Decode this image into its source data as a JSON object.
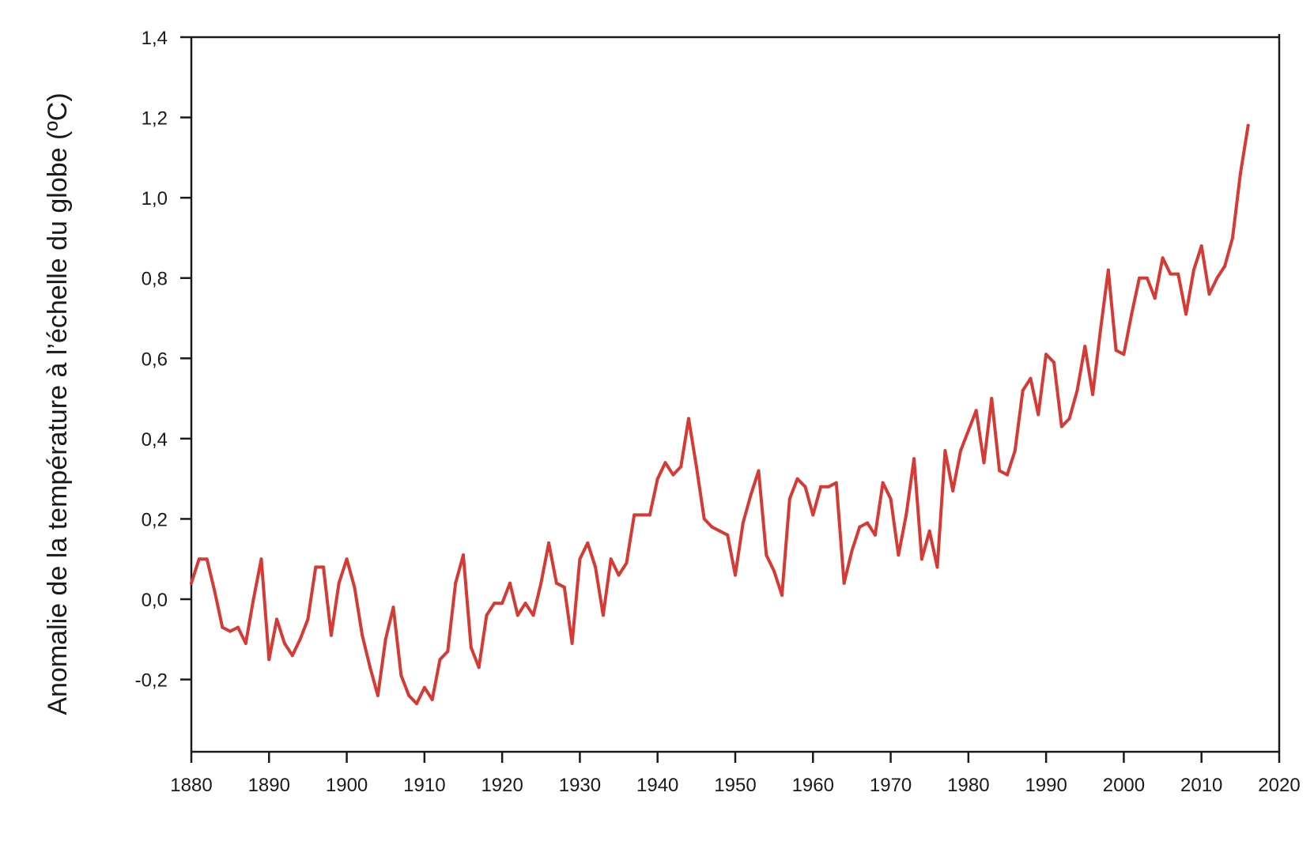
{
  "chart_data": {
    "type": "line",
    "title": "",
    "xlabel": "",
    "ylabel": "Anomalie de la température à l’échelle du globe (ºC)",
    "xlim": [
      1880,
      2020
    ],
    "ylim": [
      -0.38,
      1.4
    ],
    "x_ticks": [
      1880,
      1890,
      1900,
      1910,
      1920,
      1930,
      1940,
      1950,
      1960,
      1970,
      1980,
      1990,
      2000,
      2010,
      2020
    ],
    "x_tick_labels": [
      "1880",
      "1890",
      "1900",
      "1910",
      "1920",
      "1930",
      "1940",
      "1950",
      "1960",
      "1970",
      "1980",
      "1990",
      "2000",
      "2010",
      "2020"
    ],
    "y_ticks": [
      -0.2,
      0.0,
      0.2,
      0.4,
      0.6,
      0.8,
      1.0,
      1.2,
      1.4
    ],
    "y_tick_labels": [
      "-0,2",
      "0,0",
      "0,2",
      "0,4",
      "0,6",
      "0,8",
      "1,0",
      "1,2",
      "1,4"
    ],
    "grid": false,
    "legend": "none",
    "color": "#d63a35",
    "series": [
      {
        "x": [
          1880,
          1881,
          1882,
          1883,
          1884,
          1885,
          1886,
          1887,
          1888,
          1889,
          1890,
          1891,
          1892,
          1893,
          1894,
          1895,
          1896,
          1897,
          1898,
          1899,
          1900,
          1901,
          1902,
          1903,
          1904,
          1905,
          1906,
          1907,
          1908,
          1909,
          1910,
          1911,
          1912,
          1913,
          1914,
          1915,
          1916,
          1917,
          1918,
          1919,
          1920,
          1921,
          1922,
          1923,
          1924,
          1925,
          1926,
          1927,
          1928,
          1929,
          1930,
          1931,
          1932,
          1933,
          1934,
          1935,
          1936,
          1937,
          1938,
          1939,
          1940,
          1941,
          1942,
          1943,
          1944,
          1945,
          1946,
          1947,
          1948,
          1949,
          1950,
          1951,
          1952,
          1953,
          1954,
          1955,
          1956,
          1957,
          1958,
          1959,
          1960,
          1961,
          1962,
          1963,
          1964,
          1965,
          1966,
          1967,
          1968,
          1969,
          1970,
          1971,
          1972,
          1973,
          1974,
          1975,
          1976,
          1977,
          1978,
          1979,
          1980,
          1981,
          1982,
          1983,
          1984,
          1985,
          1986,
          1987,
          1988,
          1989,
          1990,
          1991,
          1992,
          1993,
          1994,
          1995,
          1996,
          1997,
          1998,
          1999,
          2000,
          2001,
          2002,
          2003,
          2004,
          2005,
          2006,
          2007,
          2008,
          2009,
          2010,
          2011,
          2012,
          2013,
          2014,
          2015,
          2016
        ],
        "values": [
          0.04,
          0.1,
          0.1,
          0.02,
          -0.07,
          -0.08,
          -0.07,
          -0.11,
          0.0,
          0.1,
          -0.15,
          -0.05,
          -0.11,
          -0.14,
          -0.1,
          -0.05,
          0.08,
          0.08,
          -0.09,
          0.04,
          0.1,
          0.03,
          -0.09,
          -0.17,
          -0.24,
          -0.1,
          -0.02,
          -0.19,
          -0.24,
          -0.26,
          -0.22,
          -0.25,
          -0.15,
          -0.13,
          0.04,
          0.11,
          -0.12,
          -0.17,
          -0.04,
          -0.01,
          -0.01,
          0.04,
          -0.04,
          -0.01,
          -0.04,
          0.04,
          0.14,
          0.04,
          0.03,
          -0.11,
          0.1,
          0.14,
          0.08,
          -0.04,
          0.1,
          0.06,
          0.09,
          0.21,
          0.21,
          0.21,
          0.3,
          0.34,
          0.31,
          0.33,
          0.45,
          0.33,
          0.2,
          0.18,
          0.17,
          0.16,
          0.06,
          0.19,
          0.26,
          0.32,
          0.11,
          0.07,
          0.01,
          0.25,
          0.3,
          0.28,
          0.21,
          0.28,
          0.28,
          0.29,
          0.04,
          0.12,
          0.18,
          0.19,
          0.16,
          0.29,
          0.25,
          0.11,
          0.21,
          0.35,
          0.1,
          0.17,
          0.08,
          0.37,
          0.27,
          0.37,
          0.42,
          0.47,
          0.34,
          0.5,
          0.32,
          0.31,
          0.37,
          0.52,
          0.55,
          0.46,
          0.61,
          0.59,
          0.43,
          0.45,
          0.52,
          0.63,
          0.51,
          0.67,
          0.82,
          0.62,
          0.61,
          0.71,
          0.8,
          0.8,
          0.75,
          0.85,
          0.81,
          0.81,
          0.71,
          0.82,
          0.88,
          0.76,
          0.8,
          0.83,
          0.9,
          1.06,
          1.18
        ]
      }
    ]
  }
}
